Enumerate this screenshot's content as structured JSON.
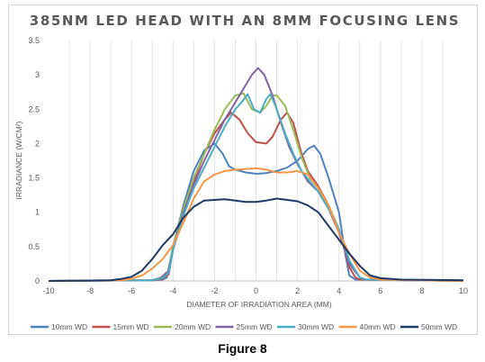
{
  "caption": "Figure 8",
  "chart_data": {
    "type": "line",
    "title": "385NM LED HEAD WITH AN 8MM FOCUSING LENS",
    "xlabel": "DIAMETER OF IRRADIATION AREA (MM)",
    "ylabel": "IRRADIANCE (W/CM²)",
    "xlim": [
      -10,
      10
    ],
    "ylim": [
      0,
      3.5
    ],
    "x_ticks": [
      "-10",
      "-8",
      "-6",
      "-4",
      "-2",
      "0",
      "2",
      "4",
      "6",
      "8",
      "10"
    ],
    "y_ticks": [
      "0",
      "0.5",
      "1",
      "1.5",
      "2",
      "2.5",
      "3",
      "3.5"
    ],
    "grid": "vertical",
    "legend_position": "bottom",
    "series": [
      {
        "name": "10mm WD",
        "color": "#4f81bd",
        "points": [
          [
            -10,
            0
          ],
          [
            -5,
            0.01
          ],
          [
            -4.5,
            0.02
          ],
          [
            -4.3,
            0.05
          ],
          [
            -4,
            0.5
          ],
          [
            -3.5,
            1.1
          ],
          [
            -3,
            1.6
          ],
          [
            -2.5,
            1.9
          ],
          [
            -2,
            2.0
          ],
          [
            -1.6,
            1.85
          ],
          [
            -1.3,
            1.67
          ],
          [
            -1,
            1.62
          ],
          [
            -0.5,
            1.58
          ],
          [
            0,
            1.56
          ],
          [
            0.5,
            1.57
          ],
          [
            1,
            1.6
          ],
          [
            1.5,
            1.65
          ],
          [
            2,
            1.75
          ],
          [
            2.5,
            1.92
          ],
          [
            2.8,
            1.97
          ],
          [
            3.1,
            1.85
          ],
          [
            3.5,
            1.5
          ],
          [
            4,
            1.0
          ],
          [
            4.3,
            0.4
          ],
          [
            4.5,
            0.08
          ],
          [
            4.8,
            0.02
          ],
          [
            10,
            0
          ]
        ]
      },
      {
        "name": "15mm WD",
        "color": "#c0504d",
        "points": [
          [
            -10,
            0
          ],
          [
            -5,
            0.01
          ],
          [
            -4.5,
            0.03
          ],
          [
            -4.2,
            0.1
          ],
          [
            -4,
            0.5
          ],
          [
            -3.5,
            1.0
          ],
          [
            -3,
            1.45
          ],
          [
            -2.5,
            1.85
          ],
          [
            -2,
            2.15
          ],
          [
            -1.5,
            2.35
          ],
          [
            -1.2,
            2.45
          ],
          [
            -0.8,
            2.35
          ],
          [
            -0.4,
            2.15
          ],
          [
            0,
            2.02
          ],
          [
            0.5,
            2.0
          ],
          [
            0.8,
            2.1
          ],
          [
            1.2,
            2.35
          ],
          [
            1.5,
            2.45
          ],
          [
            1.8,
            2.3
          ],
          [
            2.2,
            1.85
          ],
          [
            2.5,
            1.6
          ],
          [
            3,
            1.38
          ],
          [
            3.5,
            1.1
          ],
          [
            4,
            0.75
          ],
          [
            4.5,
            0.2
          ],
          [
            4.8,
            0.05
          ],
          [
            5,
            0.02
          ],
          [
            10,
            0
          ]
        ]
      },
      {
        "name": "20mm WD",
        "color": "#9bbb59",
        "points": [
          [
            -10,
            0
          ],
          [
            -5,
            0.01
          ],
          [
            -4.6,
            0.05
          ],
          [
            -4.2,
            0.15
          ],
          [
            -4,
            0.5
          ],
          [
            -3.5,
            1.05
          ],
          [
            -3,
            1.5
          ],
          [
            -2.5,
            1.85
          ],
          [
            -2,
            2.2
          ],
          [
            -1.5,
            2.5
          ],
          [
            -1,
            2.7
          ],
          [
            -0.6,
            2.73
          ],
          [
            -0.2,
            2.5
          ],
          [
            0.2,
            2.45
          ],
          [
            0.5,
            2.55
          ],
          [
            0.8,
            2.7
          ],
          [
            1,
            2.7
          ],
          [
            1.4,
            2.55
          ],
          [
            1.8,
            2.2
          ],
          [
            2.2,
            1.8
          ],
          [
            2.6,
            1.5
          ],
          [
            3,
            1.35
          ],
          [
            3.5,
            1.1
          ],
          [
            4,
            0.75
          ],
          [
            4.5,
            0.3
          ],
          [
            5,
            0.05
          ],
          [
            5.3,
            0.02
          ],
          [
            10,
            0
          ]
        ]
      },
      {
        "name": "25mm WD",
        "color": "#8064a2",
        "points": [
          [
            -10,
            0
          ],
          [
            -5,
            0.01
          ],
          [
            -4.6,
            0.04
          ],
          [
            -4.2,
            0.15
          ],
          [
            -4,
            0.45
          ],
          [
            -3.5,
            1.0
          ],
          [
            -3,
            1.4
          ],
          [
            -2.5,
            1.75
          ],
          [
            -2,
            2.05
          ],
          [
            -1.5,
            2.35
          ],
          [
            -1,
            2.6
          ],
          [
            -0.5,
            2.85
          ],
          [
            -0.2,
            3.0
          ],
          [
            0.1,
            3.1
          ],
          [
            0.4,
            3.0
          ],
          [
            0.8,
            2.7
          ],
          [
            1.2,
            2.3
          ],
          [
            1.6,
            1.95
          ],
          [
            2,
            1.7
          ],
          [
            2.5,
            1.45
          ],
          [
            3,
            1.3
          ],
          [
            3.5,
            1.05
          ],
          [
            4,
            0.7
          ],
          [
            4.5,
            0.25
          ],
          [
            5,
            0.05
          ],
          [
            5.3,
            0.02
          ],
          [
            10,
            0
          ]
        ]
      },
      {
        "name": "30mm WD",
        "color": "#4bacc6",
        "points": [
          [
            -10,
            0
          ],
          [
            -5,
            0.01
          ],
          [
            -4.5,
            0.04
          ],
          [
            -4.2,
            0.12
          ],
          [
            -4,
            0.45
          ],
          [
            -3.5,
            0.95
          ],
          [
            -3,
            1.35
          ],
          [
            -2.5,
            1.65
          ],
          [
            -2,
            1.95
          ],
          [
            -1.5,
            2.25
          ],
          [
            -1,
            2.5
          ],
          [
            -0.7,
            2.6
          ],
          [
            -0.4,
            2.72
          ],
          [
            -0.1,
            2.5
          ],
          [
            0.2,
            2.45
          ],
          [
            0.5,
            2.65
          ],
          [
            0.7,
            2.72
          ],
          [
            1,
            2.5
          ],
          [
            1.4,
            2.15
          ],
          [
            1.8,
            1.85
          ],
          [
            2.2,
            1.6
          ],
          [
            2.6,
            1.45
          ],
          [
            3,
            1.3
          ],
          [
            3.5,
            1.05
          ],
          [
            4,
            0.75
          ],
          [
            4.5,
            0.3
          ],
          [
            5,
            0.05
          ],
          [
            5.3,
            0.02
          ],
          [
            10,
            0
          ]
        ]
      },
      {
        "name": "40mm WD",
        "color": "#f79646",
        "points": [
          [
            -10,
            0
          ],
          [
            -6.5,
            0.01
          ],
          [
            -6,
            0.03
          ],
          [
            -5.5,
            0.08
          ],
          [
            -5,
            0.18
          ],
          [
            -4.5,
            0.32
          ],
          [
            -4,
            0.52
          ],
          [
            -3.5,
            0.85
          ],
          [
            -3,
            1.2
          ],
          [
            -2.5,
            1.45
          ],
          [
            -2,
            1.55
          ],
          [
            -1.5,
            1.6
          ],
          [
            -1,
            1.62
          ],
          [
            -0.5,
            1.63
          ],
          [
            0,
            1.64
          ],
          [
            0.5,
            1.62
          ],
          [
            1,
            1.58
          ],
          [
            1.5,
            1.58
          ],
          [
            2,
            1.6
          ],
          [
            2.5,
            1.55
          ],
          [
            3,
            1.35
          ],
          [
            3.5,
            1.1
          ],
          [
            4,
            0.7
          ],
          [
            4.5,
            0.4
          ],
          [
            5,
            0.15
          ],
          [
            5.5,
            0.05
          ],
          [
            6,
            0.02
          ],
          [
            10,
            0
          ]
        ]
      },
      {
        "name": "50mm WD",
        "color": "#1f3864",
        "points": [
          [
            -10,
            0
          ],
          [
            -7,
            0.01
          ],
          [
            -6.5,
            0.03
          ],
          [
            -6,
            0.06
          ],
          [
            -5.5,
            0.15
          ],
          [
            -5,
            0.32
          ],
          [
            -4.5,
            0.52
          ],
          [
            -4,
            0.68
          ],
          [
            -3.5,
            0.92
          ],
          [
            -3,
            1.08
          ],
          [
            -2.5,
            1.17
          ],
          [
            -2,
            1.18
          ],
          [
            -1.5,
            1.19
          ],
          [
            -1,
            1.17
          ],
          [
            -0.5,
            1.15
          ],
          [
            0,
            1.15
          ],
          [
            0.5,
            1.17
          ],
          [
            1,
            1.2
          ],
          [
            1.5,
            1.18
          ],
          [
            2,
            1.16
          ],
          [
            2.5,
            1.1
          ],
          [
            3,
            1.0
          ],
          [
            3.5,
            0.8
          ],
          [
            4,
            0.6
          ],
          [
            4.5,
            0.4
          ],
          [
            5,
            0.22
          ],
          [
            5.5,
            0.08
          ],
          [
            6,
            0.04
          ],
          [
            7,
            0.02
          ],
          [
            10,
            0.01
          ]
        ]
      }
    ]
  }
}
